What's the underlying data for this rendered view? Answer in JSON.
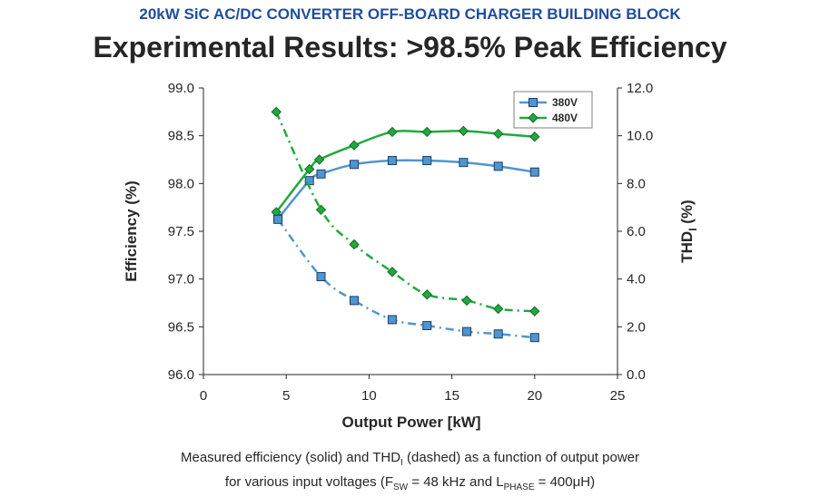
{
  "header": {
    "supertitle": "20kW SiC AC/DC CONVERTER OFF-BOARD CHARGER BUILDING BLOCK",
    "title": "Experimental Results: >98.5% Peak Efficiency"
  },
  "caption": {
    "line1_a": "Measured efficiency (solid) and THD",
    "line1_sub": "I",
    "line1_b": " (dashed) as a function of output power",
    "line2_a": "for various input voltages (F",
    "line2_sub1": "SW",
    "line2_b": " = 48 kHz and L",
    "line2_sub2": "PHASE",
    "line2_c": " = 400μH)"
  },
  "chart_data": {
    "type": "line",
    "xlabel": "Output Power [kW]",
    "ylabel": "Efficiency (%)",
    "y2label_main": "THD",
    "y2label_sub": "I",
    "y2label_tail": " (%)",
    "xlim": [
      0,
      25
    ],
    "ylim": [
      96.0,
      99.0
    ],
    "y2lim": [
      0.0,
      12.0
    ],
    "xticks": [
      "0",
      "5",
      "10",
      "15",
      "20",
      "25"
    ],
    "yticks": [
      "96.0",
      "96.5",
      "97.0",
      "97.5",
      "98.0",
      "98.5",
      "99.0"
    ],
    "y2ticks": [
      "0.0",
      "2.0",
      "4.0",
      "6.0",
      "8.0",
      "10.0",
      "12.0"
    ],
    "grid": false,
    "legend_position": "top-right",
    "series": [
      {
        "name": "380V",
        "color": "#4f95d0",
        "marker": "square",
        "axis": "left",
        "style": "solid",
        "x": [
          4.5,
          6.4,
          7.1,
          9.1,
          11.4,
          13.5,
          15.7,
          17.8,
          20.0
        ],
        "y": [
          97.63,
          98.03,
          98.1,
          98.2,
          98.24,
          98.24,
          98.22,
          98.18,
          98.12
        ]
      },
      {
        "name": "480V",
        "color": "#22a83e",
        "marker": "diamond",
        "axis": "left",
        "style": "solid",
        "x": [
          4.4,
          6.4,
          7.0,
          9.1,
          11.4,
          13.5,
          15.7,
          17.8,
          20.0
        ],
        "y": [
          97.7,
          98.15,
          98.25,
          98.4,
          98.54,
          98.54,
          98.55,
          98.52,
          98.49
        ]
      },
      {
        "color": "#4f95d0",
        "marker": "square",
        "axis": "right",
        "style": "dashed",
        "x": [
          4.5,
          7.1,
          9.1,
          11.4,
          13.5,
          15.9,
          17.8,
          20.0
        ],
        "y": [
          6.5,
          4.1,
          3.1,
          2.3,
          2.05,
          1.8,
          1.7,
          1.55
        ]
      },
      {
        "color": "#22a83e",
        "marker": "diamond",
        "axis": "right",
        "style": "dashed",
        "x": [
          4.4,
          7.1,
          9.1,
          11.4,
          13.5,
          15.9,
          17.8,
          20.0
        ],
        "y": [
          11.0,
          6.9,
          5.45,
          4.3,
          3.35,
          3.1,
          2.75,
          2.65
        ]
      }
    ]
  }
}
